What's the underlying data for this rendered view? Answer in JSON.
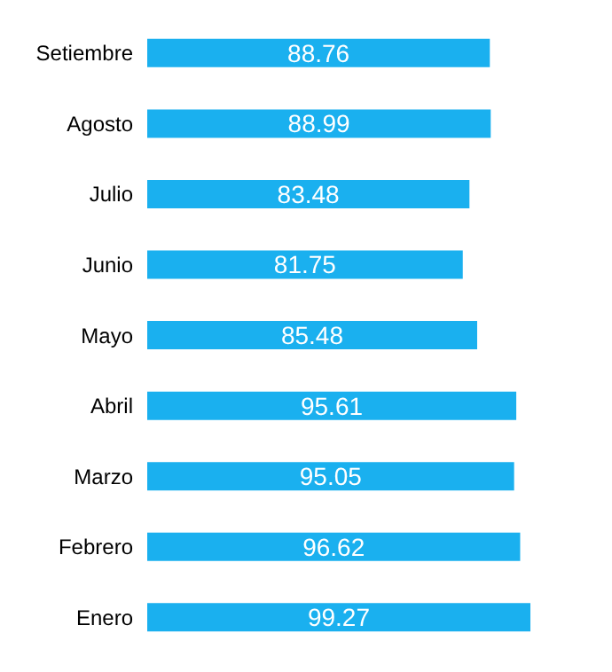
{
  "chart_data": {
    "type": "bar",
    "orientation": "horizontal",
    "categories": [
      "Setiembre",
      "Agosto",
      "Julio",
      "Junio",
      "Mayo",
      "Abril",
      "Marzo",
      "Febrero",
      "Enero"
    ],
    "values": [
      88.76,
      88.99,
      83.48,
      81.75,
      85.48,
      95.61,
      95.05,
      96.62,
      99.27
    ],
    "color": "#1ab0ef",
    "data_labels": true,
    "grid": false,
    "legend": false
  }
}
